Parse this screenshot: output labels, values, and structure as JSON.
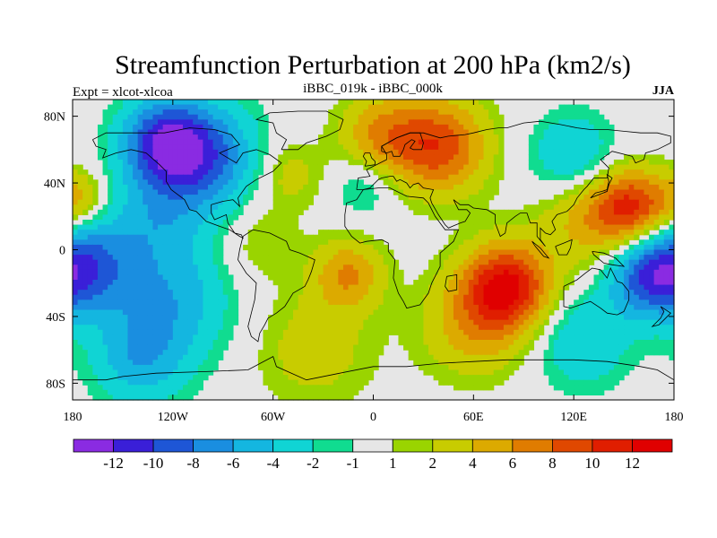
{
  "chart_data": {
    "type": "heatmap",
    "title": "Streamfunction Perturbation at 200 hPa (km2/s)",
    "left_string": "Expt = xlcot-xlcoa",
    "center_string": "iBBC_019k - iBBC_000k",
    "right_string": "JJA",
    "projection": "cylindrical-equidistant",
    "xlim": [
      -180,
      180
    ],
    "ylim": [
      -90,
      90
    ],
    "x_ticks": [
      -180,
      -120,
      -60,
      0,
      60,
      120,
      180
    ],
    "x_tick_labels": [
      "180",
      "120W",
      "60W",
      "0",
      "60E",
      "120E",
      "180"
    ],
    "y_ticks": [
      80,
      40,
      0,
      -40,
      -80
    ],
    "y_tick_labels": [
      "80N",
      "40N",
      "0",
      "40S",
      "80S"
    ],
    "colorbar": {
      "placement": "bottom",
      "levels": [
        -12,
        -10,
        -8,
        -6,
        -4,
        -2,
        -1,
        1,
        2,
        4,
        6,
        8,
        10,
        12
      ],
      "labels": [
        "-12",
        "-10",
        "-8",
        "-6",
        "-4",
        "-2",
        "-1",
        "1",
        "2",
        "4",
        "6",
        "8",
        "10",
        "12"
      ],
      "colors": [
        "#8a2be2",
        "#3a1fd8",
        "#1e56d6",
        "#1a8ee0",
        "#14b6e0",
        "#10d4d4",
        "#10dc90",
        "#e6e6e6",
        "#9ad400",
        "#c8cc00",
        "#dcaa00",
        "#e07c00",
        "#e04800",
        "#e01e00",
        "#e00000"
      ]
    },
    "field_centers": [
      {
        "lon": -125,
        "lat": 65,
        "value": -10,
        "spread": 18
      },
      {
        "lon": -100,
        "lat": 55,
        "value": -8,
        "spread": 22
      },
      {
        "lon": 40,
        "lat": 62,
        "value": 9,
        "spread": 20
      },
      {
        "lon": 5,
        "lat": 68,
        "value": 6,
        "spread": 18
      },
      {
        "lon": 155,
        "lat": 25,
        "value": 9,
        "spread": 16
      },
      {
        "lon": 130,
        "lat": 20,
        "value": 5,
        "spread": 22
      },
      {
        "lon": 80,
        "lat": -22,
        "value": 12,
        "spread": 18
      },
      {
        "lon": 60,
        "lat": -45,
        "value": 5,
        "spread": 22
      },
      {
        "lon": -15,
        "lat": -15,
        "value": 6,
        "spread": 15
      },
      {
        "lon": 165,
        "lat": -15,
        "value": -9,
        "spread": 18
      },
      {
        "lon": 125,
        "lat": -55,
        "value": -4,
        "spread": 20
      },
      {
        "lon": -170,
        "lat": -10,
        "value": -7,
        "spread": 20
      },
      {
        "lon": -120,
        "lat": -30,
        "value": -5,
        "spread": 25
      },
      {
        "lon": -175,
        "lat": 30,
        "value": 4,
        "spread": 12
      },
      {
        "lon": -130,
        "lat": 20,
        "value": -4,
        "spread": 22
      },
      {
        "lon": 120,
        "lat": 55,
        "value": -5,
        "spread": 18
      },
      {
        "lon": -5,
        "lat": 40,
        "value": -3,
        "spread": 14
      },
      {
        "lon": -50,
        "lat": 45,
        "value": 3,
        "spread": 14
      },
      {
        "lon": -35,
        "lat": -60,
        "value": 3,
        "spread": 25
      },
      {
        "lon": -70,
        "lat": 5,
        "value": 2,
        "spread": 18
      },
      {
        "lon": -140,
        "lat": -65,
        "value": -5,
        "spread": 20
      }
    ]
  }
}
